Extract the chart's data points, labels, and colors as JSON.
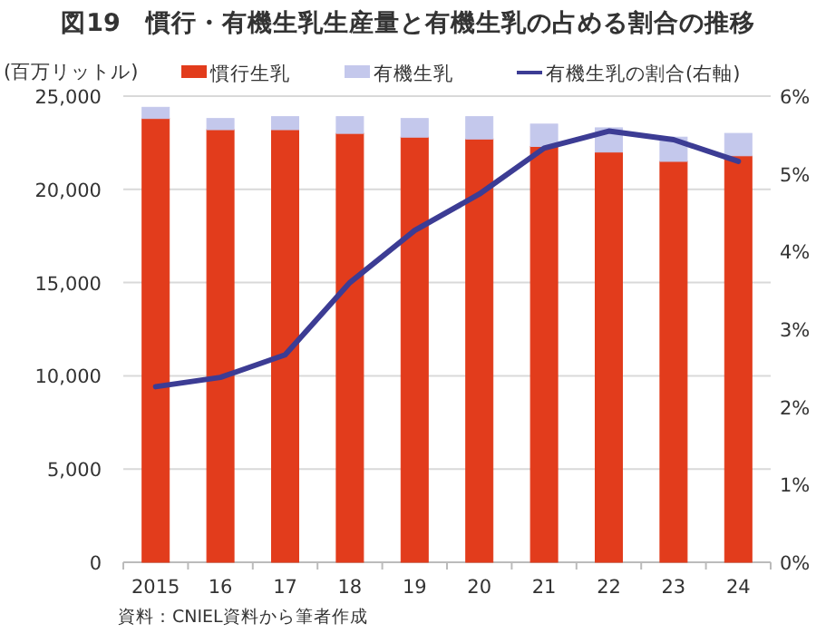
{
  "chart_data": {
    "type": "bar",
    "title": "図19　慣行・有機生乳生産量と有機生乳の占める割合の推移",
    "ylabel": "(百万リットル)",
    "categories": [
      "2015",
      "16",
      "17",
      "18",
      "19",
      "20",
      "21",
      "22",
      "23",
      "24"
    ],
    "stacked": true,
    "series": [
      {
        "name": "慣行生乳",
        "color": "#e23c1c",
        "values": [
          23800,
          23200,
          23200,
          23000,
          22800,
          22700,
          22300,
          22000,
          21500,
          21800
        ]
      },
      {
        "name": "有機生乳",
        "color": "#c4c8ec",
        "values": [
          600,
          600,
          700,
          900,
          1000,
          1200,
          1200,
          1300,
          1300,
          1200
        ]
      },
      {
        "name": "有機生乳の割合(右軸)",
        "type": "line",
        "axis": "y2",
        "color": "#3c3c94",
        "values": [
          2.26,
          2.38,
          2.67,
          3.6,
          4.27,
          4.74,
          5.33,
          5.55,
          5.44,
          5.16
        ]
      }
    ],
    "ylim": [
      0,
      25000
    ],
    "yticks": [
      0,
      {
        "value": 5000,
        "label": "5,000"
      },
      {
        "value": 10000,
        "label": "10,000"
      },
      {
        "value": 15000,
        "label": "15,000"
      },
      {
        "value": 20000,
        "label": "20,000"
      },
      {
        "value": 25000,
        "label": "25,000"
      }
    ],
    "y2lim": [
      0,
      6
    ],
    "y2ticks": [
      {
        "value": 0,
        "label": "0%"
      },
      {
        "value": 1,
        "label": "1%"
      },
      {
        "value": 2,
        "label": "2%"
      },
      {
        "value": 3,
        "label": "3%"
      },
      {
        "value": 4,
        "label": "4%"
      },
      {
        "value": 5,
        "label": "5%"
      },
      {
        "value": 6,
        "label": "6%"
      }
    ],
    "grid": "y",
    "legend": "top",
    "line_style": "solid",
    "annotations": [
      "資料：CNIEL資料から筆者作成"
    ]
  }
}
